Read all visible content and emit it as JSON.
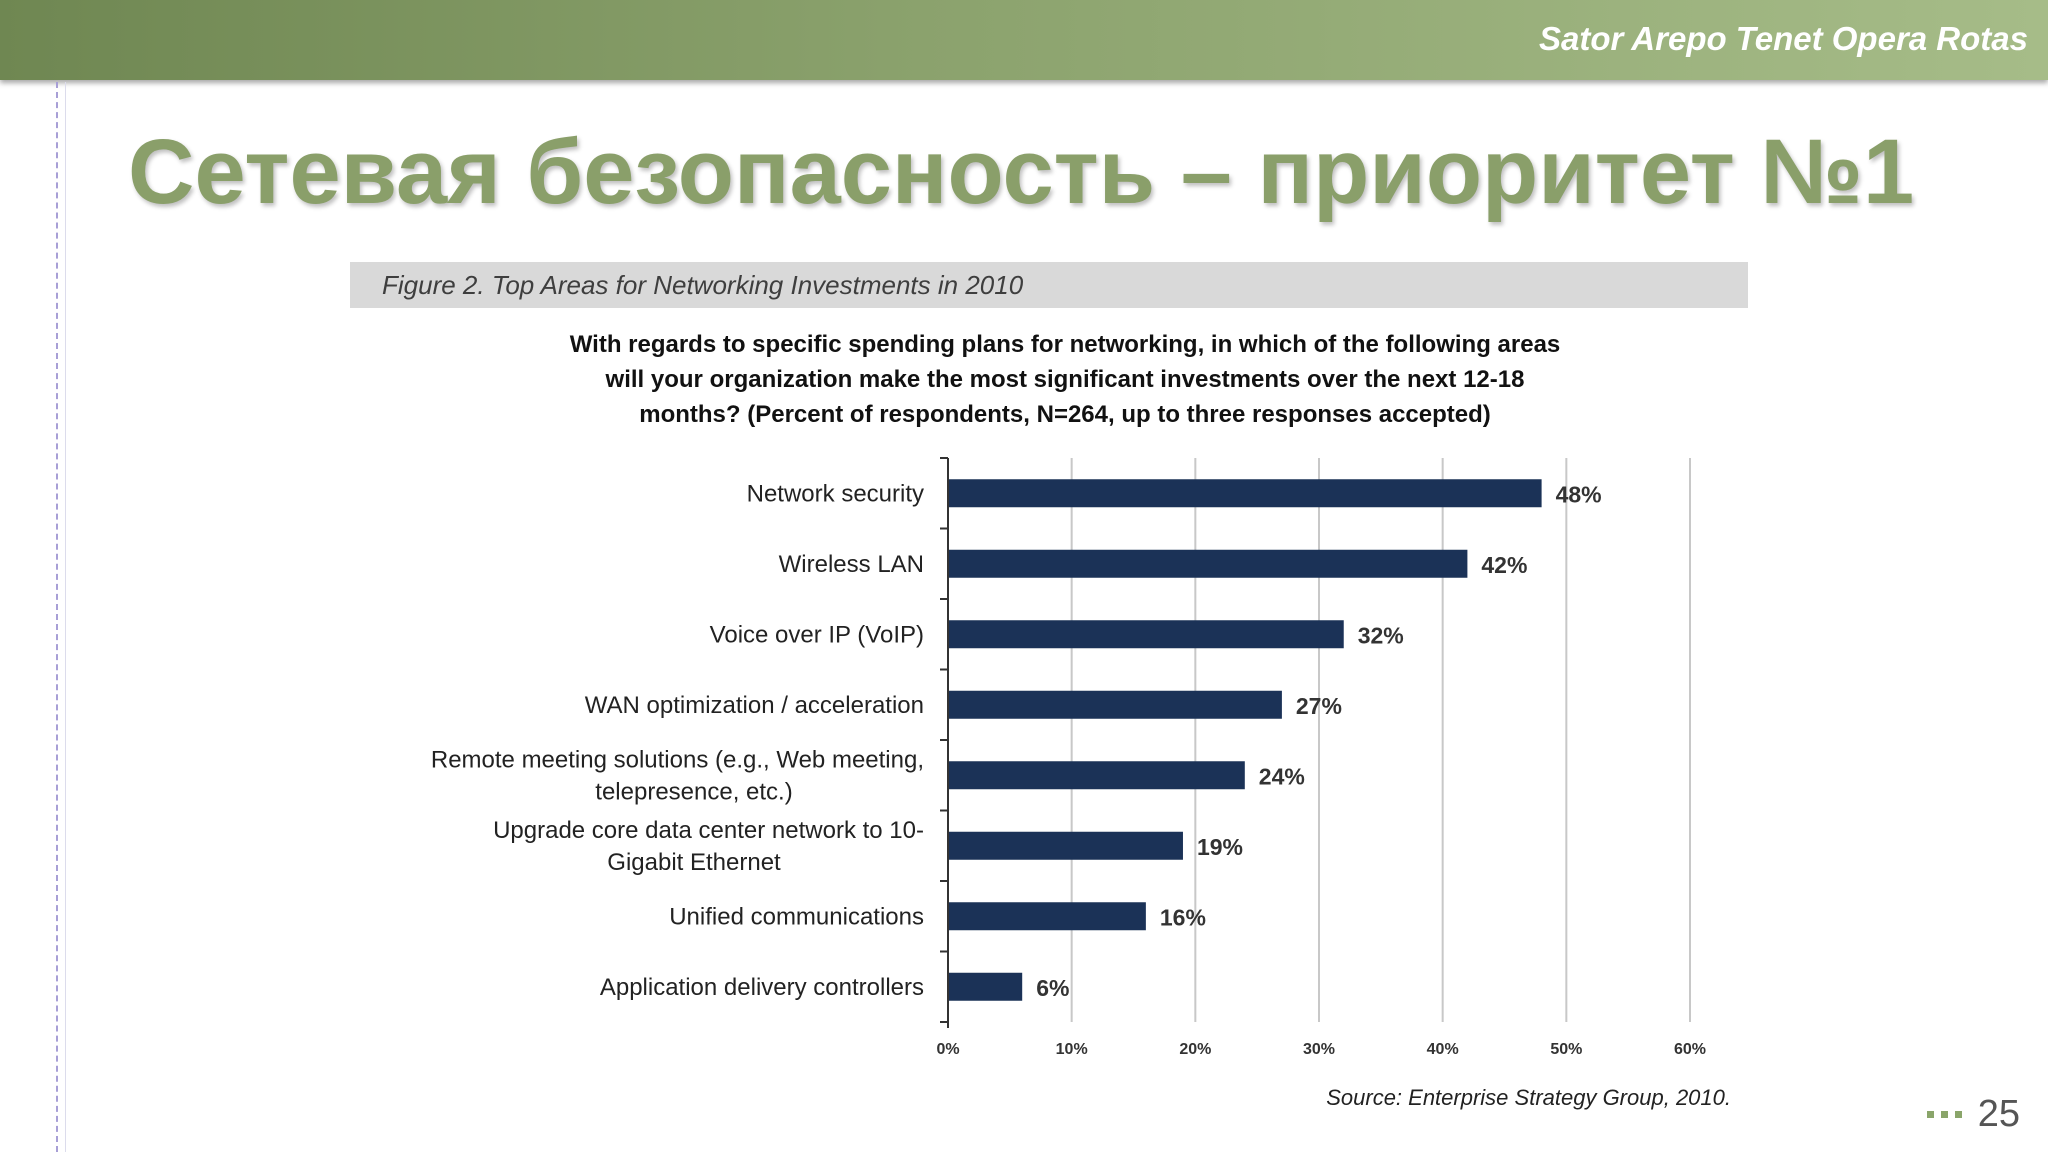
{
  "header": {
    "text": "Sator Arepo Tenet Opera Rotas",
    "band_color": "#8ba26d"
  },
  "slide": {
    "title": "Сетевая безопасность – приоритет №1",
    "title_color": "#8a9f6a",
    "page_number": "25"
  },
  "figure": {
    "caption": "Figure 2. Top Areas for Networking Investments in 2010",
    "subtitle_lines": [
      "With regards to specific spending plans for networking, in which of the following areas",
      "will your organization make the most significant investments over the next 12-18",
      "months? (Percent of respondents, N=264, up to three responses accepted)"
    ],
    "source": "Source: Enterprise Strategy Group, 2010."
  },
  "chart_data": {
    "type": "bar",
    "orientation": "horizontal",
    "categories": [
      [
        "Network security"
      ],
      [
        "Wireless LAN"
      ],
      [
        "Voice over IP (VoIP)"
      ],
      [
        "WAN optimization / acceleration"
      ],
      [
        "Remote meeting solutions (e.g., Web meeting,",
        "telepresence, etc.)"
      ],
      [
        "Upgrade core data center network to 10-",
        "Gigabit Ethernet"
      ],
      [
        "Unified communications"
      ],
      [
        "Application delivery controllers"
      ]
    ],
    "values": [
      48,
      42,
      32,
      27,
      24,
      19,
      16,
      6
    ],
    "value_labels": [
      "48%",
      "42%",
      "32%",
      "27%",
      "24%",
      "19%",
      "16%",
      "6%"
    ],
    "x_ticks": [
      0,
      10,
      20,
      30,
      40,
      50,
      60
    ],
    "x_tick_labels": [
      "0%",
      "10%",
      "20%",
      "30%",
      "40%",
      "50%",
      "60%"
    ],
    "xlim": [
      0,
      60
    ],
    "grid": true,
    "bar_color": "#1b3257"
  }
}
